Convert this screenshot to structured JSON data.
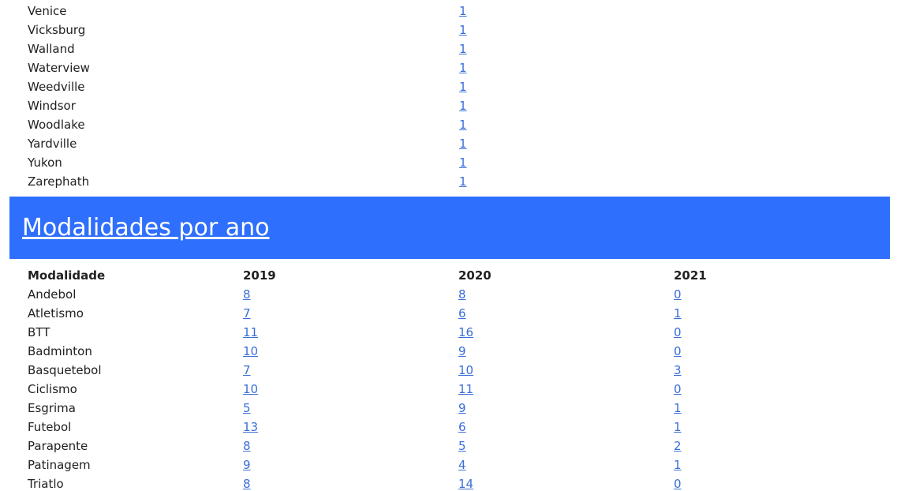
{
  "cities": [
    {
      "name": "Venice",
      "count": "1"
    },
    {
      "name": "Vicksburg",
      "count": "1"
    },
    {
      "name": "Walland",
      "count": "1"
    },
    {
      "name": "Waterview",
      "count": "1"
    },
    {
      "name": "Weedville",
      "count": "1"
    },
    {
      "name": "Windsor",
      "count": "1"
    },
    {
      "name": "Woodlake",
      "count": "1"
    },
    {
      "name": "Yardville",
      "count": "1"
    },
    {
      "name": "Yukon",
      "count": "1"
    },
    {
      "name": "Zarephath",
      "count": "1"
    }
  ],
  "section": {
    "title": "Modalidades por ano",
    "accent_color": "#2f6ffd"
  },
  "modalities_table": {
    "headers": [
      "Modalidade",
      "2019",
      "2020",
      "2021"
    ],
    "rows": [
      [
        "Andebol",
        "8",
        "8",
        "0"
      ],
      [
        "Atletismo",
        "7",
        "6",
        "1"
      ],
      [
        "BTT",
        "11",
        "16",
        "0"
      ],
      [
        "Badminton",
        "10",
        "9",
        "0"
      ],
      [
        "Basquetebol",
        "7",
        "10",
        "3"
      ],
      [
        "Ciclismo",
        "10",
        "11",
        "0"
      ],
      [
        "Esgrima",
        "5",
        "9",
        "1"
      ],
      [
        "Futebol",
        "13",
        "6",
        "1"
      ],
      [
        "Parapente",
        "8",
        "5",
        "2"
      ],
      [
        "Patinagem",
        "9",
        "4",
        "1"
      ],
      [
        "Triatlo",
        "8",
        "14",
        "0"
      ]
    ]
  }
}
